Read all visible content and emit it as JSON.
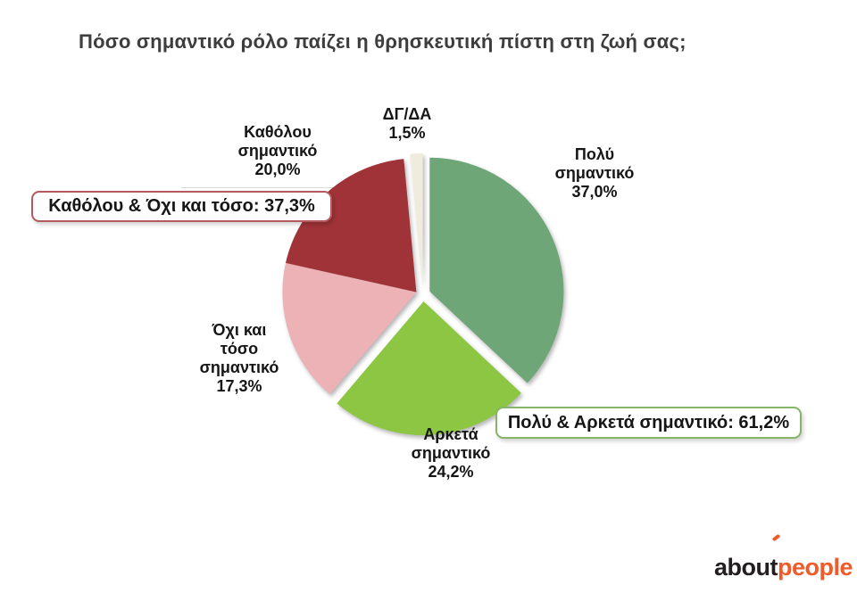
{
  "title": "Πόσο σημαντικό ρόλο παίζει η θρησκευτική πίστη στη ζωή σας;",
  "chart_data": {
    "type": "pie",
    "title": "Πόσο σημαντικό ρόλο παίζει η θρησκευτική πίστη στη ζωή σας;",
    "units": "percent",
    "start_angle_deg": 0,
    "direction": "clockwise",
    "exploded": true,
    "slices": [
      {
        "label": "Πολύ σημαντικό",
        "value": 37.0,
        "display": "Πολύ\nσημαντικό\n37,0%",
        "color": "#6FA678"
      },
      {
        "label": "Αρκετά σημαντικό",
        "value": 24.2,
        "display": "Αρκετά\nσημαντικό\n24,2%",
        "color": "#8CC642"
      },
      {
        "label": "Όχι και τόσο σημαντικό",
        "value": 17.3,
        "display": "Όχι και\nτόσο\nσημαντικό\n17,3%",
        "color": "#ECB2B6",
        "explode_group": "negative"
      },
      {
        "label": "Καθόλου σημαντικό",
        "value": 20.0,
        "display": "Καθόλου\nσημαντικό\n20,0%",
        "color": "#A03338",
        "explode_group": "negative"
      },
      {
        "label": "ΔΓ/ΔΑ",
        "value": 1.5,
        "display": "ΔΓ/ΔΑ\n1,5%",
        "color": "#EFECDD"
      }
    ],
    "callouts": [
      {
        "text": "Καθόλου & Όχι και τόσο: 37,3%",
        "border_color": "#B45A5E"
      },
      {
        "text": "Πολύ & Αρκετά σημαντικό: 61,2%",
        "border_color": "#85B566"
      }
    ]
  },
  "logo": {
    "text_black": "about",
    "text_orange": "people",
    "black_color": "#231F20",
    "orange_color": "#F15A29"
  }
}
